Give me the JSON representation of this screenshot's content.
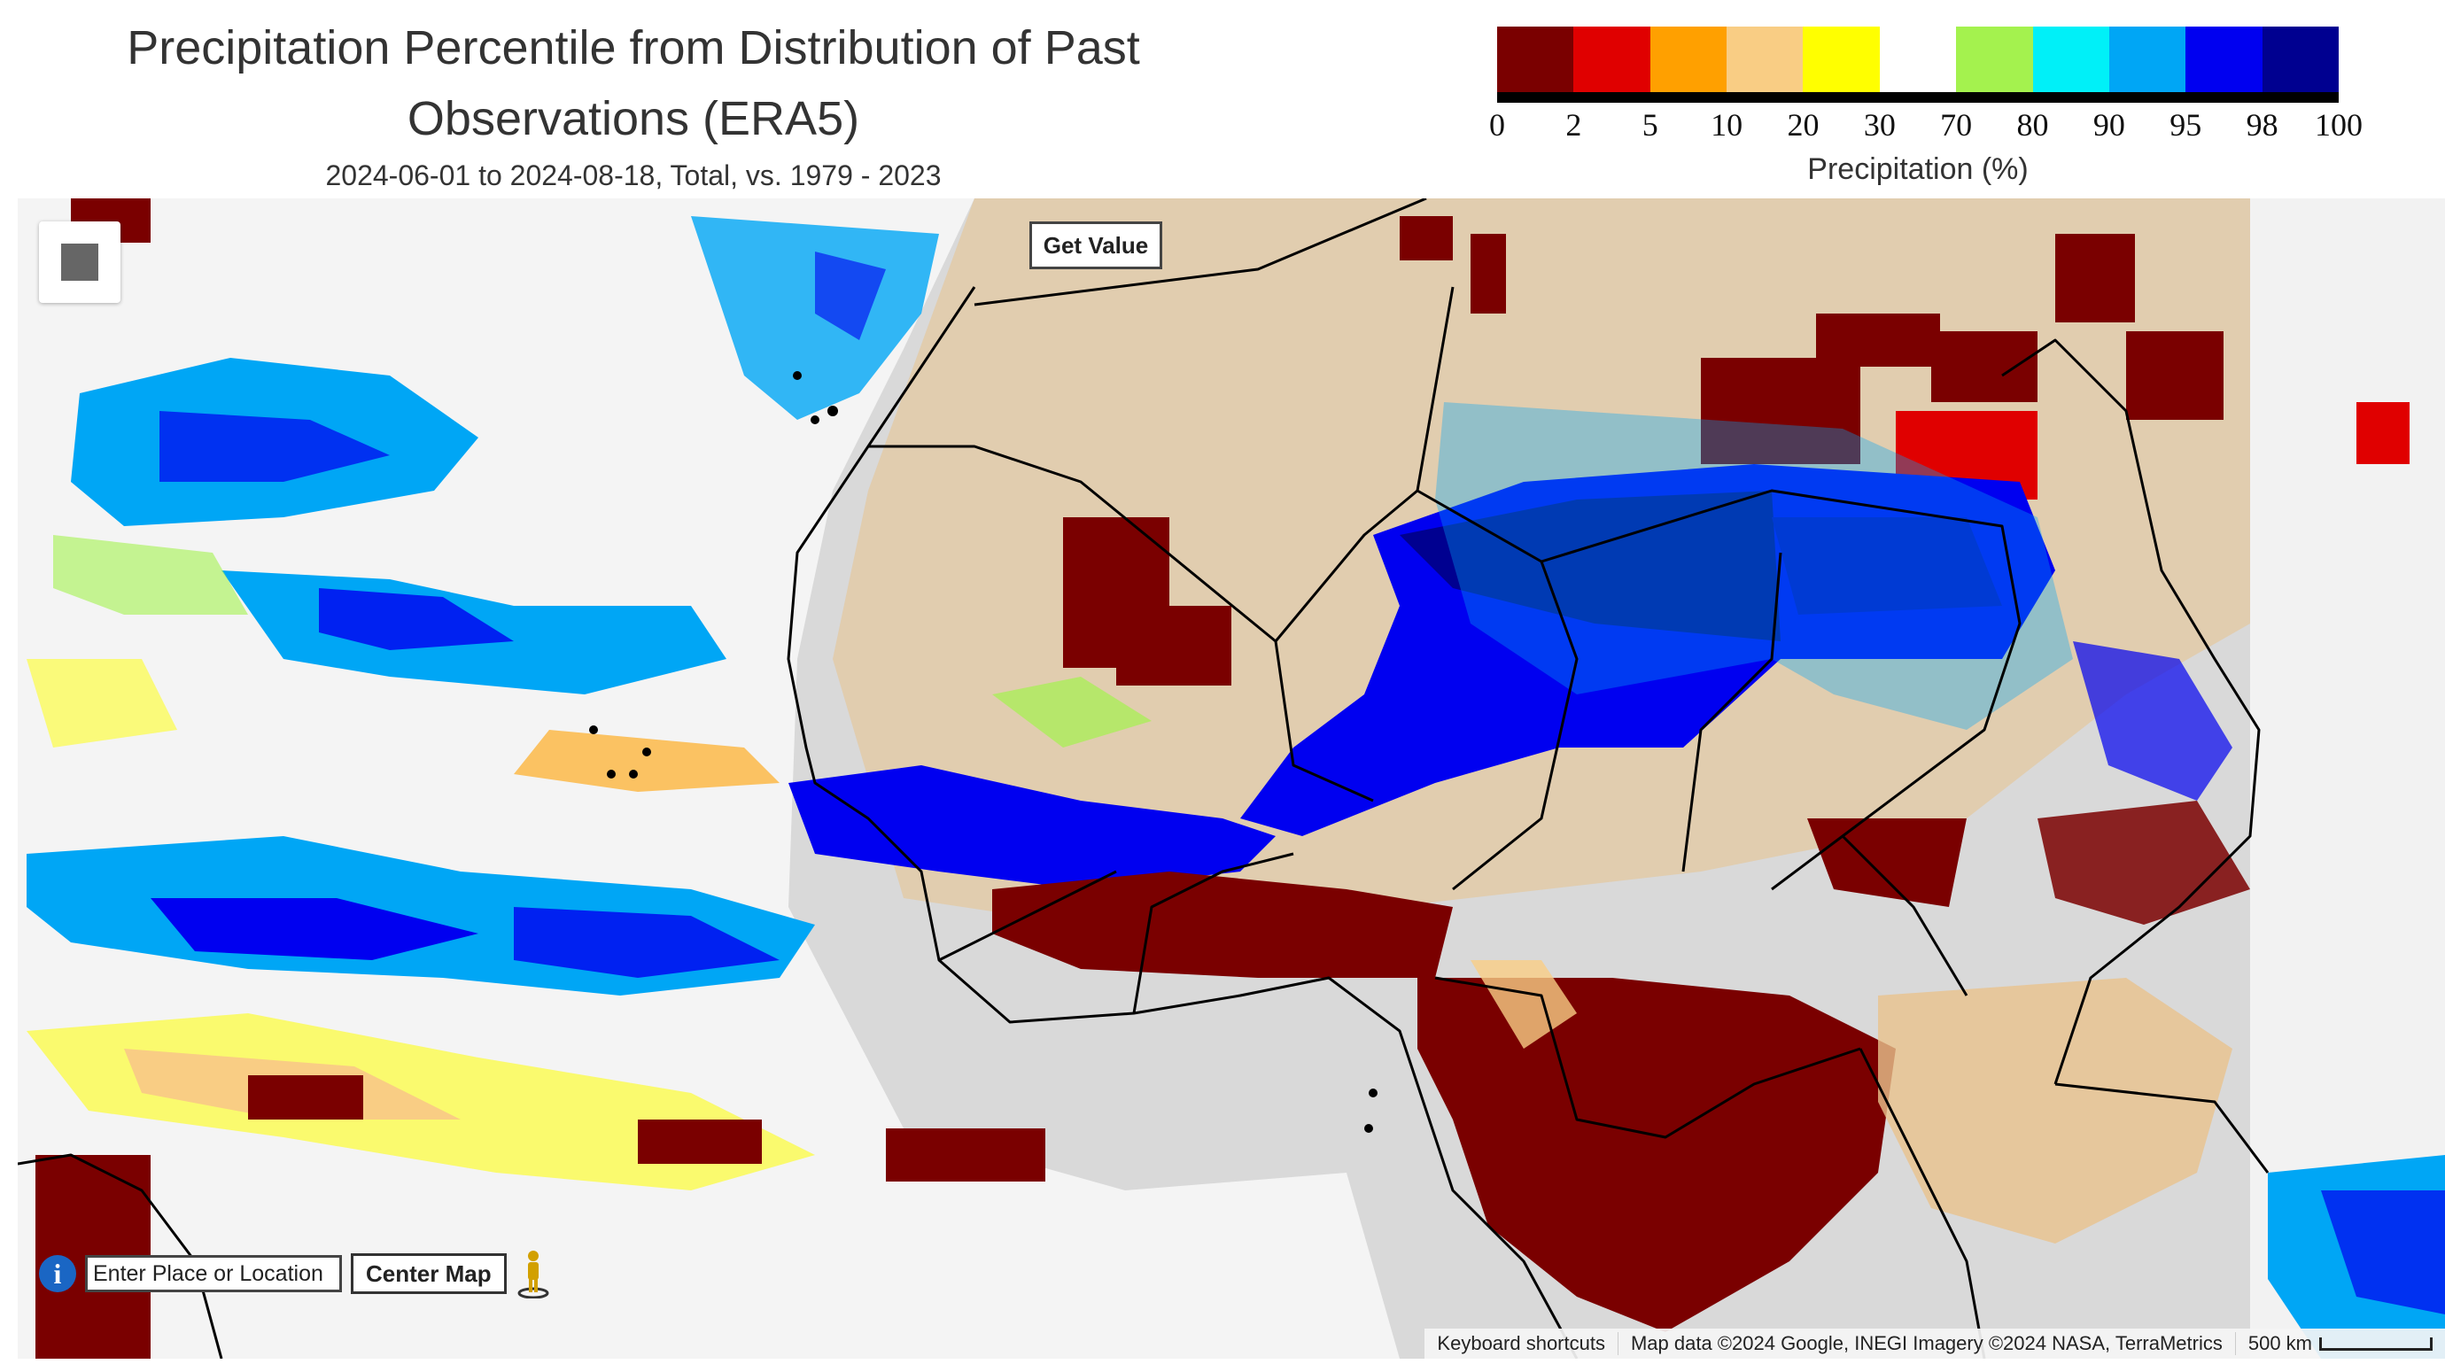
{
  "header": {
    "title_line1": "Precipitation Percentile from Distribution of Past",
    "title_line2": "Observations (ERA5)",
    "subtitle": "2024-06-01 to 2024-08-18, Total, vs. 1979 - 2023"
  },
  "legend": {
    "title": "Precipitation (%)",
    "ticks": [
      "0",
      "2",
      "5",
      "10",
      "20",
      "30",
      "70",
      "80",
      "90",
      "95",
      "98",
      "100"
    ],
    "colors": [
      "#7a0000",
      "#e00000",
      "#ffa000",
      "#f9cd84",
      "#ffff00",
      "#ffffff",
      "#a4f24e",
      "#00f0f8",
      "#00a6f5",
      "#0000f0",
      "#000090"
    ]
  },
  "map": {
    "get_value_label": "Get Value",
    "search_placeholder": "Enter Place or Location",
    "center_button_label": "Center Map",
    "attribution": {
      "keyboard": "Keyboard shortcuts",
      "data": "Map data ©2024 Google, INEGI Imagery ©2024 NASA, TerraMetrics",
      "scale": "500 km"
    },
    "icons": [
      "map-control-square-icon",
      "info-icon",
      "pegman-icon"
    ]
  }
}
